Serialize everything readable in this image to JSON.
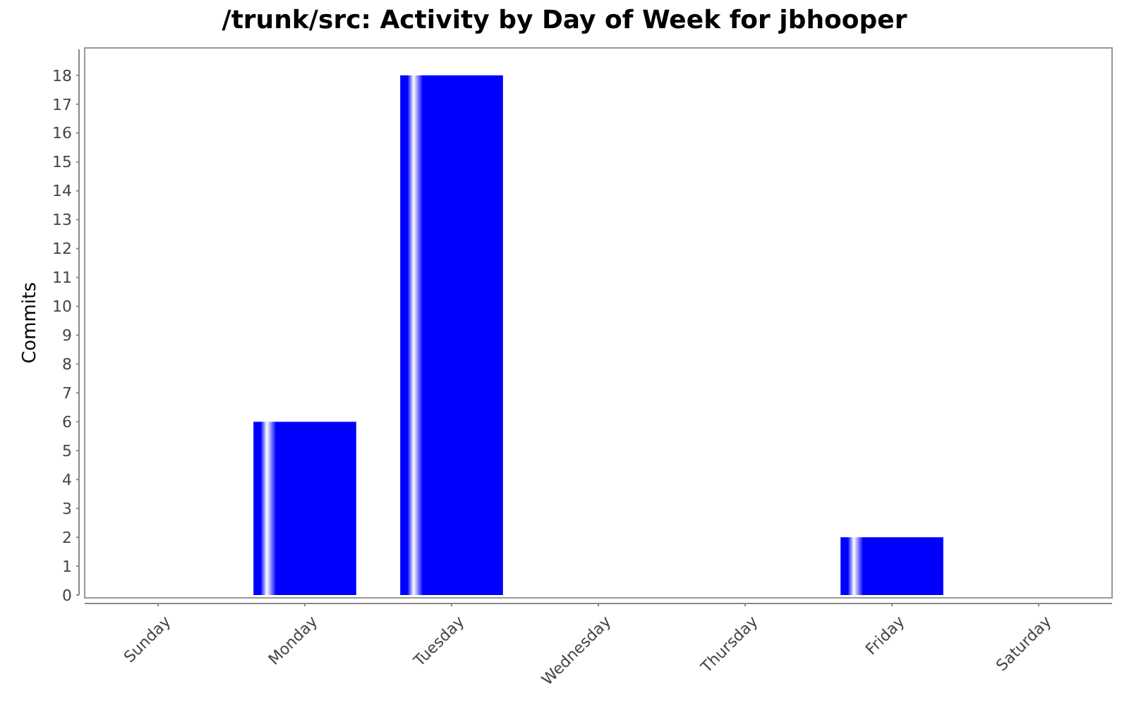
{
  "chart_data": {
    "type": "bar",
    "title": "/trunk/src: Activity by Day of Week for jbhooper",
    "ylabel": "Commits",
    "categories": [
      "Sunday",
      "Monday",
      "Tuesday",
      "Wednesday",
      "Thursday",
      "Friday",
      "Saturday"
    ],
    "values": [
      0,
      6,
      18,
      0,
      0,
      2,
      0
    ],
    "color": "#0000ff",
    "ylim": [
      0,
      18.9
    ],
    "yticks": [
      0,
      1,
      2,
      3,
      4,
      5,
      6,
      7,
      8,
      9,
      10,
      11,
      12,
      13,
      14,
      15,
      16,
      17,
      18
    ],
    "grid": false
  }
}
